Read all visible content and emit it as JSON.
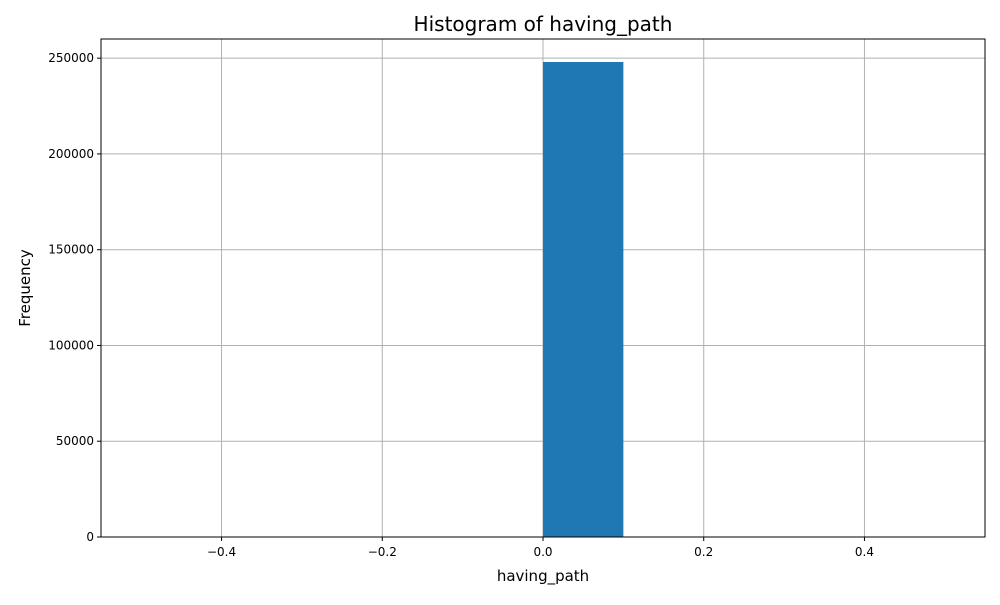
{
  "chart_data": {
    "type": "bar",
    "title": "Histogram of having_path",
    "xlabel": "having_path",
    "ylabel": "Frequency",
    "xlim": [
      -0.55,
      0.55
    ],
    "ylim": [
      0,
      260000
    ],
    "bins": [
      {
        "x0": 0.0,
        "x1": 0.1,
        "count": 248000
      }
    ],
    "x_ticks": [
      {
        "value": -0.4,
        "label": "−0.4"
      },
      {
        "value": -0.2,
        "label": "−0.2"
      },
      {
        "value": 0.0,
        "label": "0.0"
      },
      {
        "value": 0.2,
        "label": "0.2"
      },
      {
        "value": 0.4,
        "label": "0.4"
      }
    ],
    "y_ticks": [
      {
        "value": 0,
        "label": "0"
      },
      {
        "value": 50000,
        "label": "50000"
      },
      {
        "value": 100000,
        "label": "100000"
      },
      {
        "value": 150000,
        "label": "150000"
      },
      {
        "value": 200000,
        "label": "200000"
      },
      {
        "value": 250000,
        "label": "250000"
      }
    ],
    "grid": true,
    "colors": {
      "bar": "#1f77b4",
      "grid": "#b0b0b0",
      "axes": "#000000"
    }
  }
}
